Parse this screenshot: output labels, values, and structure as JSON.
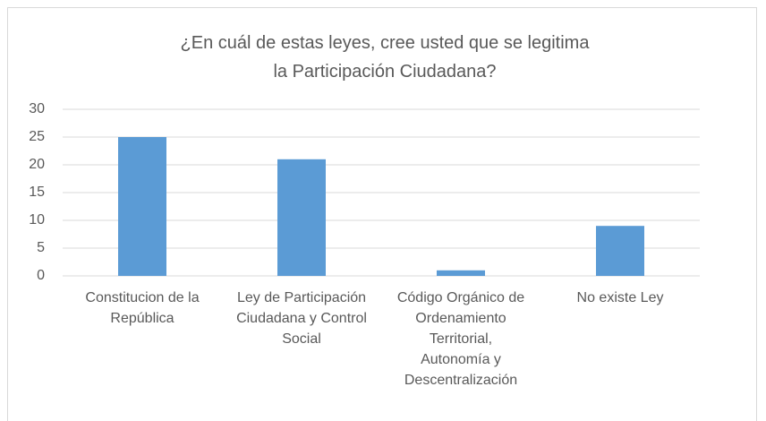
{
  "chart_data": {
    "type": "bar",
    "title": "¿En cuál de estas leyes, cree usted que se legitima la Participación Ciudadana?",
    "categories": [
      "Constitucion de la República",
      "Ley de Participación Ciudadana y Control Social",
      "Código Orgánico de Ordenamiento Territorial, Autonomía y Descentralización",
      "No existe Ley"
    ],
    "values": [
      25,
      21,
      1,
      9
    ],
    "color": "#5b9bd5",
    "ylim": [
      0,
      30
    ],
    "yticks": [
      0,
      5,
      10,
      15,
      20,
      25,
      30
    ],
    "grid": true
  }
}
